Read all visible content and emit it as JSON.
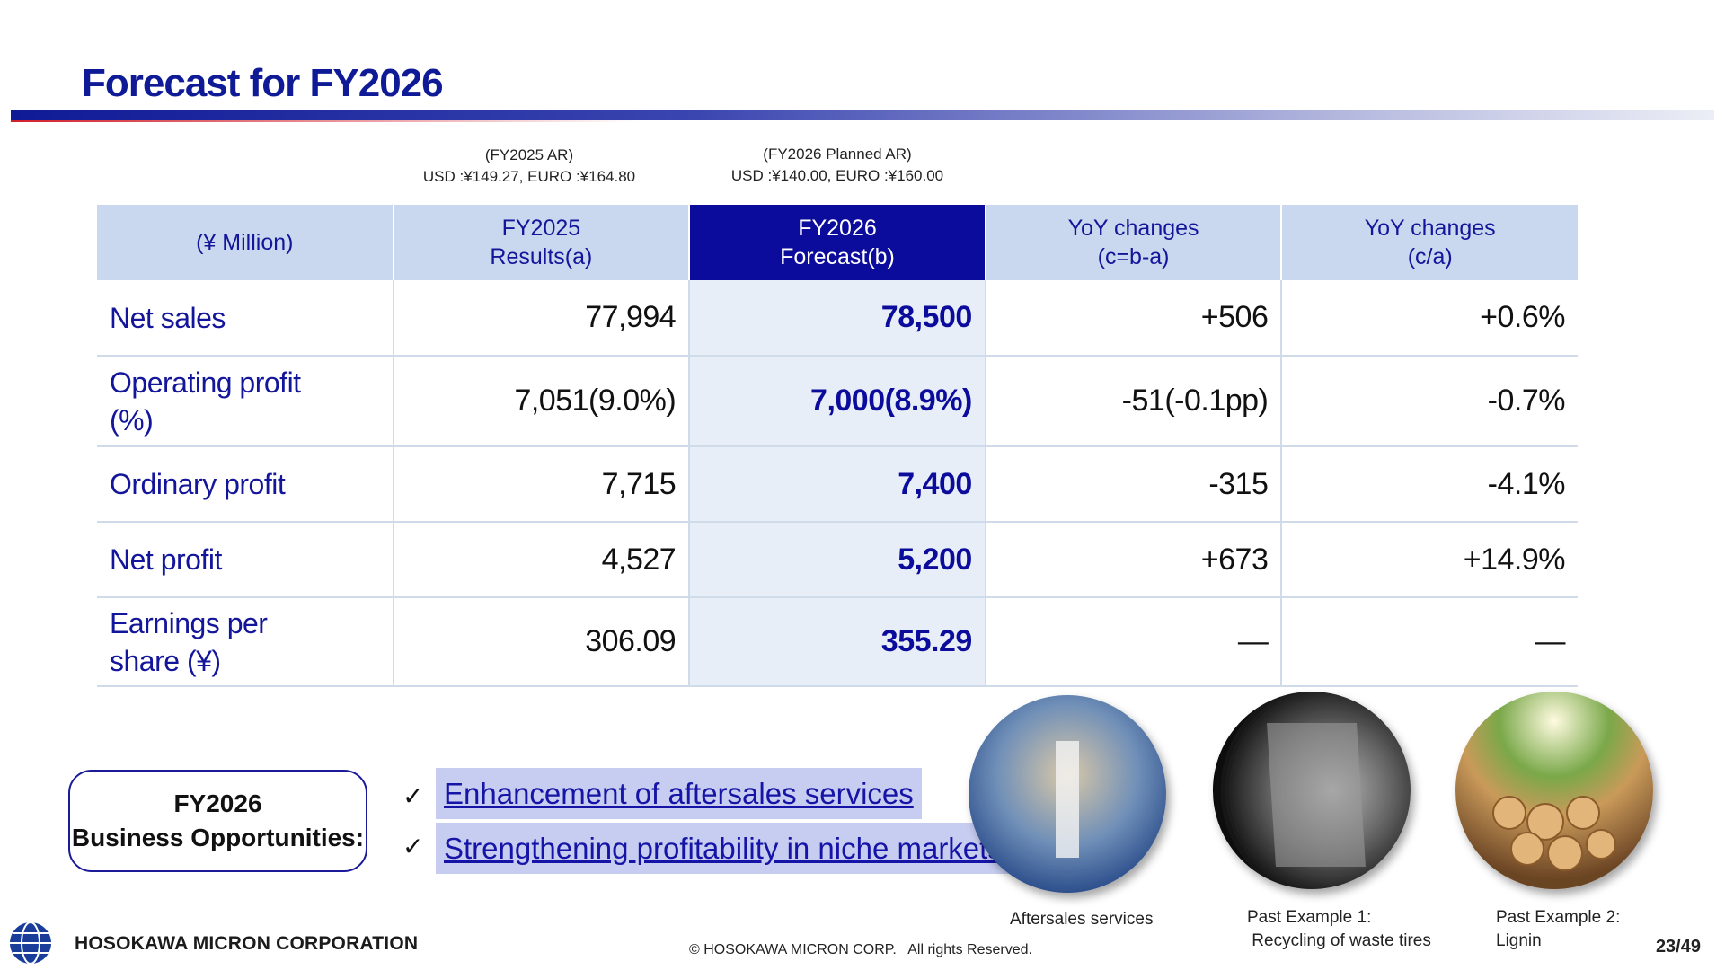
{
  "header": {
    "title": "Forecast for FY2026"
  },
  "rates": [
    {
      "lines": [
        "(FY2025 AR)",
        "USD :¥149.27, EURO :¥164.80"
      ]
    },
    {
      "lines": [
        "(FY2026 Planned AR)",
        "USD :¥140.00, EURO  :¥160.00"
      ]
    }
  ],
  "table": {
    "header": [
      [
        "(¥ Million)"
      ],
      [
        "FY2025",
        "Results(a)"
      ],
      [
        "FY2026",
        "Forecast(b)"
      ],
      [
        "YoY changes",
        "(c=b-a)"
      ],
      [
        "YoY changes",
        "(c/a)"
      ]
    ],
    "rows": [
      [
        [
          "Net sales"
        ],
        "77,994",
        "78,500",
        "+506",
        "+0.6%"
      ],
      [
        [
          "Operating profit",
          "(%)"
        ],
        "7,051(9.0%)",
        "7,000(8.9%)",
        "-51(-0.1pp)",
        "-0.7%"
      ],
      [
        [
          "Ordinary profit"
        ],
        "7,715",
        "7,400",
        "-315",
        "-4.1%"
      ],
      [
        [
          "Net profit"
        ],
        "4,527",
        "5,200",
        "+673",
        "+14.9%"
      ],
      [
        [
          "Earnings per",
          "share (¥)"
        ],
        "306.09",
        "355.29",
        "—",
        "—"
      ]
    ]
  },
  "opportunities": {
    "label": [
      "FY2026",
      "Business Opportunities:"
    ],
    "items": [
      "Enhancement of aftersales services",
      "Strengthening profitability in niche markets"
    ]
  },
  "photos": [
    {
      "caption": [
        "Aftersales services"
      ]
    },
    {
      "caption": [
        "Past Example 1:",
        " Recycling of waste tires"
      ]
    },
    {
      "caption": [
        "Past Example 2:",
        "Lignin"
      ]
    }
  ],
  "footer": {
    "company": "HOSOKAWA MICRON CORPORATION",
    "copyright": "© HOSOKAWA MICRON CORP.   All rights Reserved.",
    "page": "23/49"
  }
}
